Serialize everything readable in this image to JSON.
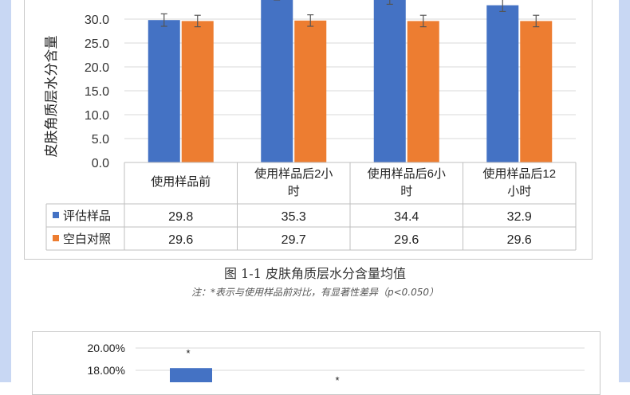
{
  "chart_data": [
    {
      "type": "bar",
      "ylabel": "皮肤角质层水分含量",
      "ylim": [
        0,
        40
      ],
      "yticks": [
        "0.0",
        "5.0",
        "10.0",
        "15.0",
        "20.0",
        "25.0",
        "30.0"
      ],
      "categories": [
        "使用样品前",
        "使用样品后2小时",
        "使用样品后6小时",
        "使用样品后12小时"
      ],
      "category_lines": [
        [
          "使用样品前"
        ],
        [
          "使用样品后2小",
          "时"
        ],
        [
          "使用样品后6小",
          "时"
        ],
        [
          "使用样品后12",
          "小时"
        ]
      ],
      "series": [
        {
          "name": "评估样品",
          "color": "#4472c4",
          "values": [
            29.8,
            35.3,
            34.4,
            32.9
          ],
          "labels": [
            "29.8",
            "35.3",
            "34.4",
            "32.9"
          ],
          "errors": [
            1.3,
            1.3,
            1.3,
            1.3
          ]
        },
        {
          "name": "空白对照",
          "color": "#ed7d31",
          "values": [
            29.6,
            29.7,
            29.6,
            29.6
          ],
          "labels": [
            "29.6",
            "29.7",
            "29.6",
            "29.6"
          ],
          "errors": [
            1.2,
            1.2,
            1.2,
            1.2
          ]
        }
      ],
      "grid": true,
      "legend": "in-table"
    },
    {
      "type": "bar",
      "yticks": [
        "20.00%",
        "18.00%"
      ],
      "ylim": [
        16,
        20.5
      ],
      "series": [
        {
          "color": "#4472c4",
          "values": [
            18.2
          ]
        }
      ],
      "annotations": [
        "*",
        "*"
      ]
    }
  ],
  "caption": "图 1-1 皮肤角质层水分含量均值",
  "note": "注：*表示与使用样品前对比，有显著性差异（p<0.050）"
}
